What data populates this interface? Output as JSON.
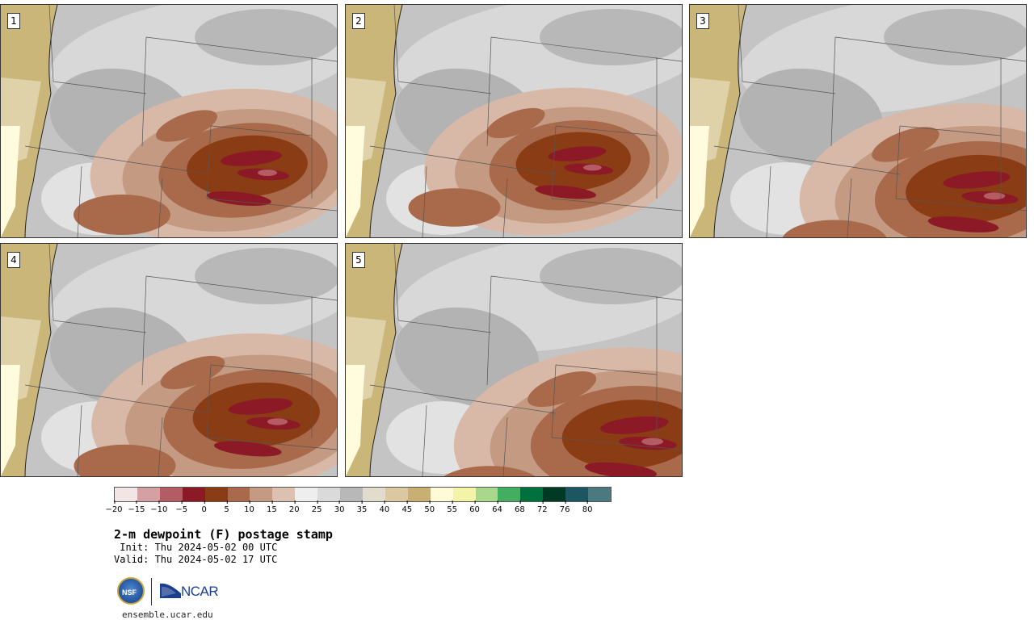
{
  "panels": [
    {
      "label": "1"
    },
    {
      "label": "2"
    },
    {
      "label": "3"
    },
    {
      "label": "4"
    },
    {
      "label": "5"
    }
  ],
  "colorbar": {
    "colors": [
      "#f2e6e4",
      "#d4a0a2",
      "#b35c63",
      "#8c1a26",
      "#8a3c14",
      "#a86a4a",
      "#c49a82",
      "#dcc0b0",
      "#eeeeee",
      "#dadada",
      "#b8b8b8",
      "#e2dccc",
      "#dcc8a0",
      "#c8b074",
      "#fffbd8",
      "#f4f4a8",
      "#a8d88c",
      "#44ae60",
      "#00703c",
      "#003a24",
      "#1c5660",
      "#4a7a80"
    ],
    "ticks": [
      "−20",
      "−15",
      "−10",
      "−5",
      "0",
      "5",
      "10",
      "15",
      "20",
      "25",
      "30",
      "35",
      "40",
      "45",
      "50",
      "55",
      "60",
      "64",
      "68",
      "72",
      "76",
      "80"
    ]
  },
  "title": "2-m dewpoint (F) postage stamp",
  "init": " Init: Thu 2024-05-02 00 UTC",
  "valid": "Valid: Thu 2024-05-02 17 UTC",
  "logos": {
    "nsf": "NSF",
    "ncar": "NCAR"
  },
  "site": "ensemble.ucar.edu"
}
